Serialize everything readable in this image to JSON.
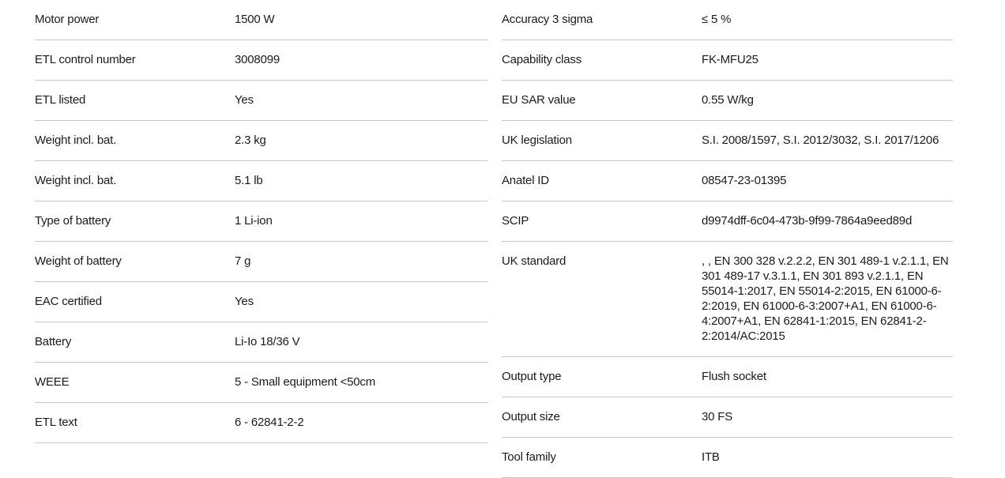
{
  "colors": {
    "background": "#ffffff",
    "text": "#1b1b1b",
    "divider": "#c9c9c9"
  },
  "spec_table": {
    "left_column": [
      {
        "label": "Motor power",
        "value": "1500 W"
      },
      {
        "label": "ETL control number",
        "value": "3008099"
      },
      {
        "label": "ETL listed",
        "value": "Yes"
      },
      {
        "label": "Weight incl. bat.",
        "value": "2.3 kg"
      },
      {
        "label": "Weight incl. bat.",
        "value": "5.1 lb"
      },
      {
        "label": "Type of battery",
        "value": "1 Li-ion"
      },
      {
        "label": "Weight of battery",
        "value": "7 g"
      },
      {
        "label": "EAC certified",
        "value": "Yes"
      },
      {
        "label": "Battery",
        "value": "Li-Io 18/36 V"
      },
      {
        "label": "WEEE",
        "value": "5 - Small equipment <50cm"
      },
      {
        "label": "ETL text",
        "value": "6 - 62841-2-2"
      }
    ],
    "right_column": [
      {
        "label": "Accuracy 3 sigma",
        "value": "≤ 5 %"
      },
      {
        "label": "Capability class",
        "value": "FK-MFU25"
      },
      {
        "label": "EU SAR value",
        "value": "0.55 W/kg"
      },
      {
        "label": "UK legislation",
        "value": "S.I. 2008/1597, S.I. 2012/3032, S.I. 2017/1206"
      },
      {
        "label": "Anatel ID",
        "value": "08547-23-01395"
      },
      {
        "label": "SCIP",
        "value": "d9974dff-6c04-473b-9f99-7864a9eed89d"
      },
      {
        "label": "UK standard",
        "value": ", , EN 300 328 v.2.2.2, EN 301 489-1 v.2.1.1, EN 301 489-17 v.3.1.1, EN 301 893 v.2.1.1, EN 55014-1:2017, EN 55014-2:2015, EN 61000-6-2:2019, EN 61000-6-3:2007+A1, EN 61000-6-4:2007+A1, EN 62841-1:2015, EN 62841-2-2:2014/AC:2015"
      },
      {
        "label": "Output type",
        "value": "Flush socket"
      },
      {
        "label": "Output size",
        "value": "30 FS"
      },
      {
        "label": "Tool family",
        "value": "ITB"
      }
    ]
  }
}
